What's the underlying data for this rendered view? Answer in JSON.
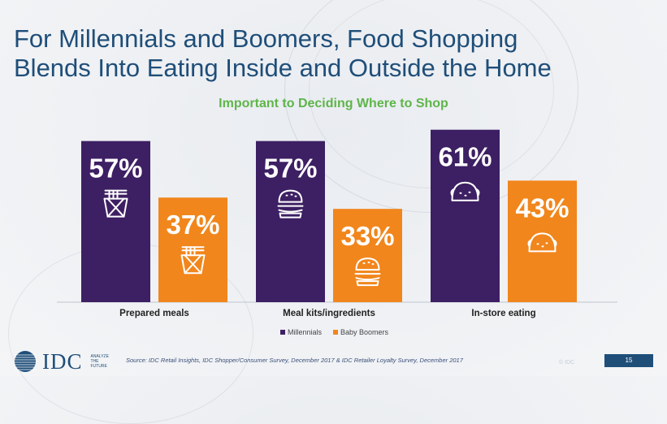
{
  "header": {
    "title_line1": "For Millennials and Boomers, Food Shopping",
    "title_line2": "Blends Into Eating Inside and Outside the Home"
  },
  "chart_data": {
    "type": "bar",
    "title": "Important to Deciding Where to Shop",
    "categories": [
      "Prepared meals",
      "Meal kits/ingredients",
      "In-store eating"
    ],
    "series": [
      {
        "name": "Millennials",
        "values": [
          57,
          57,
          61
        ],
        "labels": [
          "57%",
          "57%",
          "61%"
        ],
        "color": "#3d1f63"
      },
      {
        "name": "Baby Boomers",
        "values": [
          37,
          33,
          43
        ],
        "labels": [
          "37%",
          "33%",
          "43%"
        ],
        "color": "#f1861c"
      }
    ],
    "category_icons": [
      "noodle-box-icon",
      "burger-icon",
      "taco-icon"
    ],
    "ylim": [
      0,
      65
    ],
    "xlabel": "",
    "ylabel": "",
    "legend": "bottom-center"
  },
  "footer": {
    "source": "Source: IDC Retail Insights, IDC Shopper/Consumer Survey, December 2017 & IDC Retailer Loyalty Survey, December 2017",
    "logo": "IDC",
    "tagline_1": "ANALYZE",
    "tagline_2": "THE",
    "tagline_3": "FUTURE",
    "copyright": "© IDC",
    "page_number": "15"
  },
  "colors": {
    "title": "#1f4e79",
    "subtitle": "#5fb54a",
    "millennials": "#3d1f63",
    "boomers": "#f1861c"
  }
}
